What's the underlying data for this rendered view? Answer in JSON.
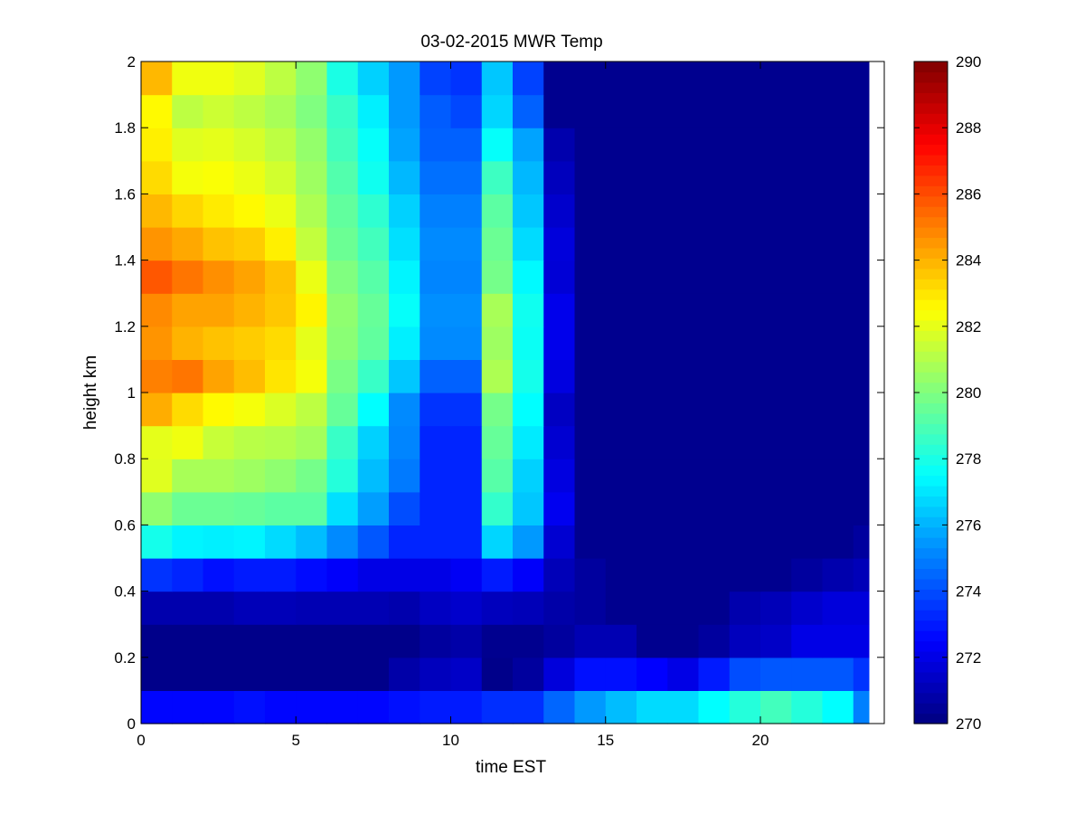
{
  "chart_data": {
    "type": "heatmap",
    "title": "03-02-2015 MWR Temp",
    "xlabel": "time EST",
    "ylabel": "height km",
    "xlim": [
      0,
      24
    ],
    "ylim": [
      0,
      2
    ],
    "x_ticks": [
      "0",
      "5",
      "10",
      "15",
      "20"
    ],
    "y_ticks": [
      "0",
      "0.2",
      "0.4",
      "0.6",
      "0.8",
      "1",
      "1.2",
      "1.4",
      "1.6",
      "1.8",
      "2"
    ],
    "colormap": "jet",
    "clim": [
      270,
      290
    ],
    "colorbar_ticks": [
      "270",
      "272",
      "274",
      "276",
      "278",
      "280",
      "282",
      "284",
      "286",
      "288",
      "290"
    ],
    "x": [
      0,
      1,
      2,
      3,
      4,
      5,
      6,
      7,
      8,
      9,
      10,
      11,
      12,
      13,
      14,
      15,
      16,
      17,
      18,
      19,
      20,
      21,
      22,
      23
    ],
    "y": [
      0,
      0.1,
      0.2,
      0.3,
      0.4,
      0.5,
      0.6,
      0.7,
      0.8,
      0.9,
      1.0,
      1.1,
      1.2,
      1.3,
      1.4,
      1.5,
      1.6,
      1.7,
      1.8,
      1.9
    ],
    "values": [
      [
        272.6,
        272.6,
        272.6,
        272.8,
        272.6,
        272.6,
        272.6,
        272.6,
        272.8,
        273.0,
        273.0,
        273.4,
        273.4,
        274.5,
        275.5,
        276.2,
        276.8,
        276.8,
        277.5,
        278.2,
        278.8,
        278.2,
        277.5,
        275.0
      ],
      [
        270.2,
        270.2,
        270.2,
        270.2,
        270.2,
        270.2,
        270.2,
        270.2,
        270.8,
        271.2,
        271.4,
        270.2,
        270.6,
        271.8,
        272.8,
        272.8,
        272.5,
        272.0,
        273.0,
        274.0,
        274.2,
        274.2,
        274.2,
        273.5
      ],
      [
        270.2,
        270.2,
        270.2,
        270.2,
        270.2,
        270.2,
        270.2,
        270.2,
        270.2,
        270.6,
        270.8,
        270.3,
        270.3,
        270.6,
        271.0,
        271.0,
        270.3,
        270.3,
        270.6,
        271.2,
        271.4,
        272.0,
        272.0,
        272.0
      ],
      [
        270.9,
        270.9,
        270.9,
        271.1,
        271.1,
        271.0,
        271.0,
        271.0,
        270.9,
        271.3,
        271.5,
        271.2,
        271.1,
        270.8,
        270.6,
        270.3,
        270.3,
        270.3,
        270.3,
        270.9,
        271.1,
        271.5,
        271.8,
        271.8
      ],
      [
        273.5,
        273.2,
        272.8,
        273.0,
        273.0,
        272.7,
        272.4,
        272.0,
        272.0,
        272.0,
        272.3,
        273.0,
        272.4,
        271.1,
        270.6,
        270.3,
        270.3,
        270.3,
        270.3,
        270.3,
        270.3,
        270.6,
        270.9,
        271.1
      ],
      [
        277.9,
        277.3,
        277.2,
        277.3,
        276.8,
        276.2,
        275.2,
        274.2,
        273.2,
        273.2,
        273.2,
        276.7,
        275.5,
        271.6,
        270.3,
        270.3,
        270.3,
        270.3,
        270.3,
        270.3,
        270.3,
        270.3,
        270.3,
        270.6
      ],
      [
        280.3,
        279.6,
        279.6,
        279.5,
        279.3,
        279.3,
        276.9,
        275.6,
        274.0,
        273.2,
        273.2,
        278.5,
        276.4,
        272.2,
        270.3,
        270.3,
        270.3,
        270.3,
        270.3,
        270.3,
        270.3,
        270.3,
        270.3,
        270.3
      ],
      [
        281.9,
        280.8,
        280.8,
        280.6,
        280.3,
        279.8,
        278.2,
        276.2,
        274.9,
        273.2,
        273.2,
        279.2,
        276.6,
        271.9,
        270.3,
        270.3,
        270.3,
        270.3,
        270.3,
        270.3,
        270.3,
        270.3,
        270.3,
        270.3
      ],
      [
        282.0,
        282.2,
        281.4,
        281.1,
        281.0,
        280.7,
        278.6,
        276.6,
        275.1,
        273.2,
        273.2,
        279.5,
        277.1,
        271.6,
        270.3,
        270.3,
        270.3,
        270.3,
        270.3,
        270.3,
        270.3,
        270.3,
        270.3,
        270.3
      ],
      [
        284.1,
        283.2,
        282.6,
        282.3,
        281.8,
        281.2,
        279.5,
        277.5,
        275.2,
        273.5,
        273.5,
        279.8,
        277.5,
        271.3,
        270.3,
        270.3,
        270.3,
        270.3,
        270.3,
        270.3,
        270.3,
        270.3,
        270.3,
        270.3
      ],
      [
        285.0,
        285.2,
        284.3,
        283.8,
        283.0,
        282.3,
        279.9,
        278.6,
        276.4,
        274.4,
        274.4,
        280.9,
        277.9,
        271.9,
        270.3,
        270.3,
        270.3,
        270.3,
        270.3,
        270.3,
        270.3,
        270.3,
        270.3,
        270.3
      ],
      [
        284.6,
        284.0,
        283.7,
        283.5,
        283.2,
        282.0,
        280.2,
        279.4,
        277.2,
        275.2,
        275.2,
        280.6,
        277.7,
        272.1,
        270.3,
        270.3,
        270.3,
        270.3,
        270.3,
        270.3,
        270.3,
        270.3,
        270.3,
        270.3
      ],
      [
        284.8,
        284.3,
        284.3,
        284.0,
        283.6,
        282.7,
        280.3,
        279.5,
        277.6,
        275.3,
        275.3,
        280.8,
        277.8,
        272.1,
        270.3,
        270.3,
        270.3,
        270.3,
        270.3,
        270.3,
        270.3,
        270.3,
        270.3,
        270.3
      ],
      [
        285.8,
        285.2,
        284.7,
        284.3,
        283.7,
        282.1,
        280.0,
        279.2,
        277.3,
        275.1,
        275.1,
        279.8,
        277.4,
        271.7,
        270.3,
        270.3,
        270.3,
        270.3,
        270.3,
        270.3,
        270.3,
        270.3,
        270.3,
        270.3
      ],
      [
        284.6,
        284.2,
        283.7,
        283.5,
        282.8,
        281.3,
        279.6,
        278.8,
        276.9,
        275.2,
        275.2,
        279.6,
        276.8,
        271.8,
        270.3,
        270.3,
        270.3,
        270.3,
        270.3,
        270.3,
        270.3,
        270.3,
        270.3,
        270.3
      ],
      [
        283.9,
        283.3,
        282.9,
        282.6,
        282.1,
        280.9,
        279.4,
        278.4,
        276.6,
        275.0,
        275.0,
        279.3,
        276.4,
        271.5,
        270.3,
        270.3,
        270.3,
        270.3,
        270.3,
        270.3,
        270.3,
        270.3,
        270.3,
        270.3
      ],
      [
        283.2,
        282.3,
        282.4,
        282.1,
        281.6,
        280.6,
        279.1,
        277.8,
        276.1,
        274.7,
        274.7,
        278.7,
        276.1,
        271.2,
        270.3,
        270.3,
        270.3,
        270.3,
        270.3,
        270.3,
        270.3,
        270.3,
        270.3,
        270.3
      ],
      [
        282.8,
        281.9,
        282.0,
        281.7,
        281.2,
        280.4,
        278.8,
        277.6,
        275.7,
        274.4,
        274.4,
        277.6,
        275.7,
        270.9,
        270.3,
        270.3,
        270.3,
        270.3,
        270.3,
        270.3,
        270.3,
        270.3,
        270.3,
        270.3
      ],
      [
        282.6,
        281.2,
        281.5,
        281.2,
        280.8,
        280.0,
        278.6,
        277.2,
        275.5,
        274.3,
        273.9,
        276.7,
        274.4,
        270.3,
        270.3,
        270.3,
        270.3,
        270.3,
        270.3,
        270.3,
        270.3,
        270.3,
        270.3,
        270.3
      ],
      [
        283.9,
        282.2,
        282.2,
        281.9,
        281.2,
        280.3,
        278.0,
        276.6,
        275.5,
        273.8,
        273.5,
        276.4,
        273.8,
        270.3,
        270.3,
        270.3,
        270.3,
        270.3,
        270.3,
        270.3,
        270.3,
        270.3,
        270.3,
        270.3
      ]
    ]
  }
}
